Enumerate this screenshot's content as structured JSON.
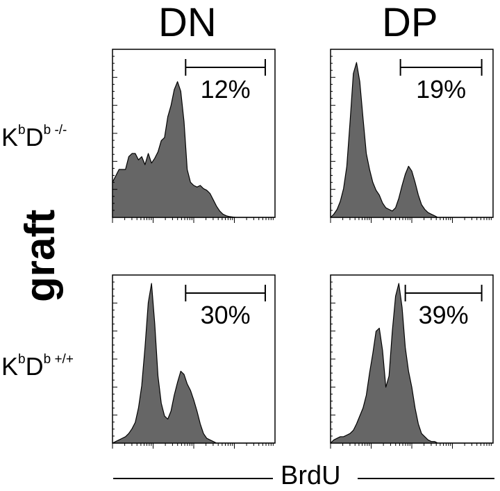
{
  "column_titles": [
    "DN",
    "DP"
  ],
  "row_labels": [
    {
      "base1": "K",
      "sup1": "b",
      "base2": "D",
      "sup2": "b -/-"
    },
    {
      "base1": "K",
      "sup1": "b",
      "base2": "D",
      "sup2": "b +/+"
    }
  ],
  "side_label": "graft",
  "x_axis_label": "BrdU",
  "chart_data": [
    {
      "type": "area",
      "column": "DN",
      "row": "KbDb -/-",
      "gate_percent_label": "12%",
      "gate_range": [
        0.45,
        0.94
      ],
      "x": [
        0.0,
        0.04,
        0.08,
        0.1,
        0.12,
        0.14,
        0.16,
        0.18,
        0.2,
        0.22,
        0.24,
        0.26,
        0.28,
        0.3,
        0.32,
        0.34,
        0.36,
        0.38,
        0.4,
        0.42,
        0.44,
        0.46,
        0.48,
        0.5,
        0.52,
        0.54,
        0.56,
        0.58,
        0.6,
        0.62,
        0.64,
        0.66,
        0.68,
        0.7,
        0.72,
        0.74,
        0.76,
        1.0
      ],
      "y": [
        0.22,
        0.3,
        0.3,
        0.38,
        0.4,
        0.4,
        0.36,
        0.38,
        0.33,
        0.4,
        0.34,
        0.37,
        0.41,
        0.48,
        0.5,
        0.63,
        0.7,
        0.8,
        0.85,
        0.79,
        0.6,
        0.3,
        0.22,
        0.2,
        0.19,
        0.2,
        0.18,
        0.17,
        0.15,
        0.11,
        0.07,
        0.04,
        0.02,
        0.01,
        0.005,
        0.002,
        0.0,
        0.0
      ]
    },
    {
      "type": "area",
      "column": "DP",
      "row": "KbDb -/-",
      "gate_percent_label": "19%",
      "gate_range": [
        0.43,
        0.93
      ],
      "x": [
        0.0,
        0.02,
        0.04,
        0.06,
        0.08,
        0.1,
        0.12,
        0.14,
        0.16,
        0.18,
        0.2,
        0.22,
        0.24,
        0.26,
        0.28,
        0.3,
        0.32,
        0.34,
        0.36,
        0.38,
        0.4,
        0.42,
        0.44,
        0.46,
        0.48,
        0.5,
        0.52,
        0.54,
        0.56,
        0.58,
        0.6,
        0.62,
        0.64,
        0.66,
        0.68,
        0.7,
        1.0
      ],
      "y": [
        0.0,
        0.02,
        0.05,
        0.1,
        0.18,
        0.32,
        0.6,
        0.9,
        0.97,
        0.85,
        0.62,
        0.4,
        0.3,
        0.22,
        0.17,
        0.14,
        0.09,
        0.06,
        0.05,
        0.04,
        0.06,
        0.12,
        0.2,
        0.27,
        0.32,
        0.29,
        0.22,
        0.14,
        0.08,
        0.05,
        0.03,
        0.02,
        0.01,
        0.0,
        0.0,
        0.0,
        0.0
      ]
    },
    {
      "type": "area",
      "column": "DN",
      "row": "KbDb +/+",
      "gate_percent_label": "30%",
      "gate_range": [
        0.45,
        0.94
      ],
      "x": [
        0.0,
        0.02,
        0.04,
        0.06,
        0.08,
        0.1,
        0.12,
        0.14,
        0.16,
        0.18,
        0.2,
        0.22,
        0.24,
        0.26,
        0.28,
        0.3,
        0.32,
        0.34,
        0.36,
        0.38,
        0.4,
        0.42,
        0.44,
        0.46,
        0.48,
        0.5,
        0.52,
        0.54,
        0.56,
        0.58,
        0.6,
        0.62,
        0.64,
        0.66,
        0.68,
        0.7,
        0.72,
        1.0
      ],
      "y": [
        0.0,
        0.01,
        0.02,
        0.03,
        0.04,
        0.06,
        0.09,
        0.13,
        0.22,
        0.36,
        0.6,
        0.88,
        1.0,
        0.75,
        0.42,
        0.25,
        0.17,
        0.15,
        0.2,
        0.3,
        0.38,
        0.45,
        0.43,
        0.37,
        0.33,
        0.27,
        0.2,
        0.12,
        0.06,
        0.03,
        0.02,
        0.01,
        0.0,
        0.0,
        0.0,
        0.0,
        0.0,
        0.0
      ]
    },
    {
      "type": "area",
      "column": "DP",
      "row": "KbDb +/+",
      "gate_percent_label": "39%",
      "gate_range": [
        0.46,
        0.93
      ],
      "x": [
        0.0,
        0.02,
        0.04,
        0.06,
        0.08,
        0.1,
        0.12,
        0.14,
        0.16,
        0.18,
        0.2,
        0.22,
        0.24,
        0.26,
        0.28,
        0.3,
        0.32,
        0.34,
        0.36,
        0.38,
        0.4,
        0.42,
        0.44,
        0.46,
        0.48,
        0.5,
        0.52,
        0.54,
        0.56,
        0.58,
        0.6,
        0.62,
        0.64,
        0.66,
        0.68,
        0.7,
        0.72,
        1.0
      ],
      "y": [
        0.0,
        0.02,
        0.03,
        0.04,
        0.04,
        0.05,
        0.06,
        0.08,
        0.12,
        0.17,
        0.22,
        0.3,
        0.44,
        0.56,
        0.7,
        0.72,
        0.58,
        0.35,
        0.42,
        0.7,
        0.92,
        1.0,
        0.85,
        0.6,
        0.45,
        0.35,
        0.22,
        0.12,
        0.06,
        0.04,
        0.02,
        0.01,
        0.01,
        0.0,
        0.0,
        0.0,
        0.0,
        0.0
      ]
    }
  ]
}
